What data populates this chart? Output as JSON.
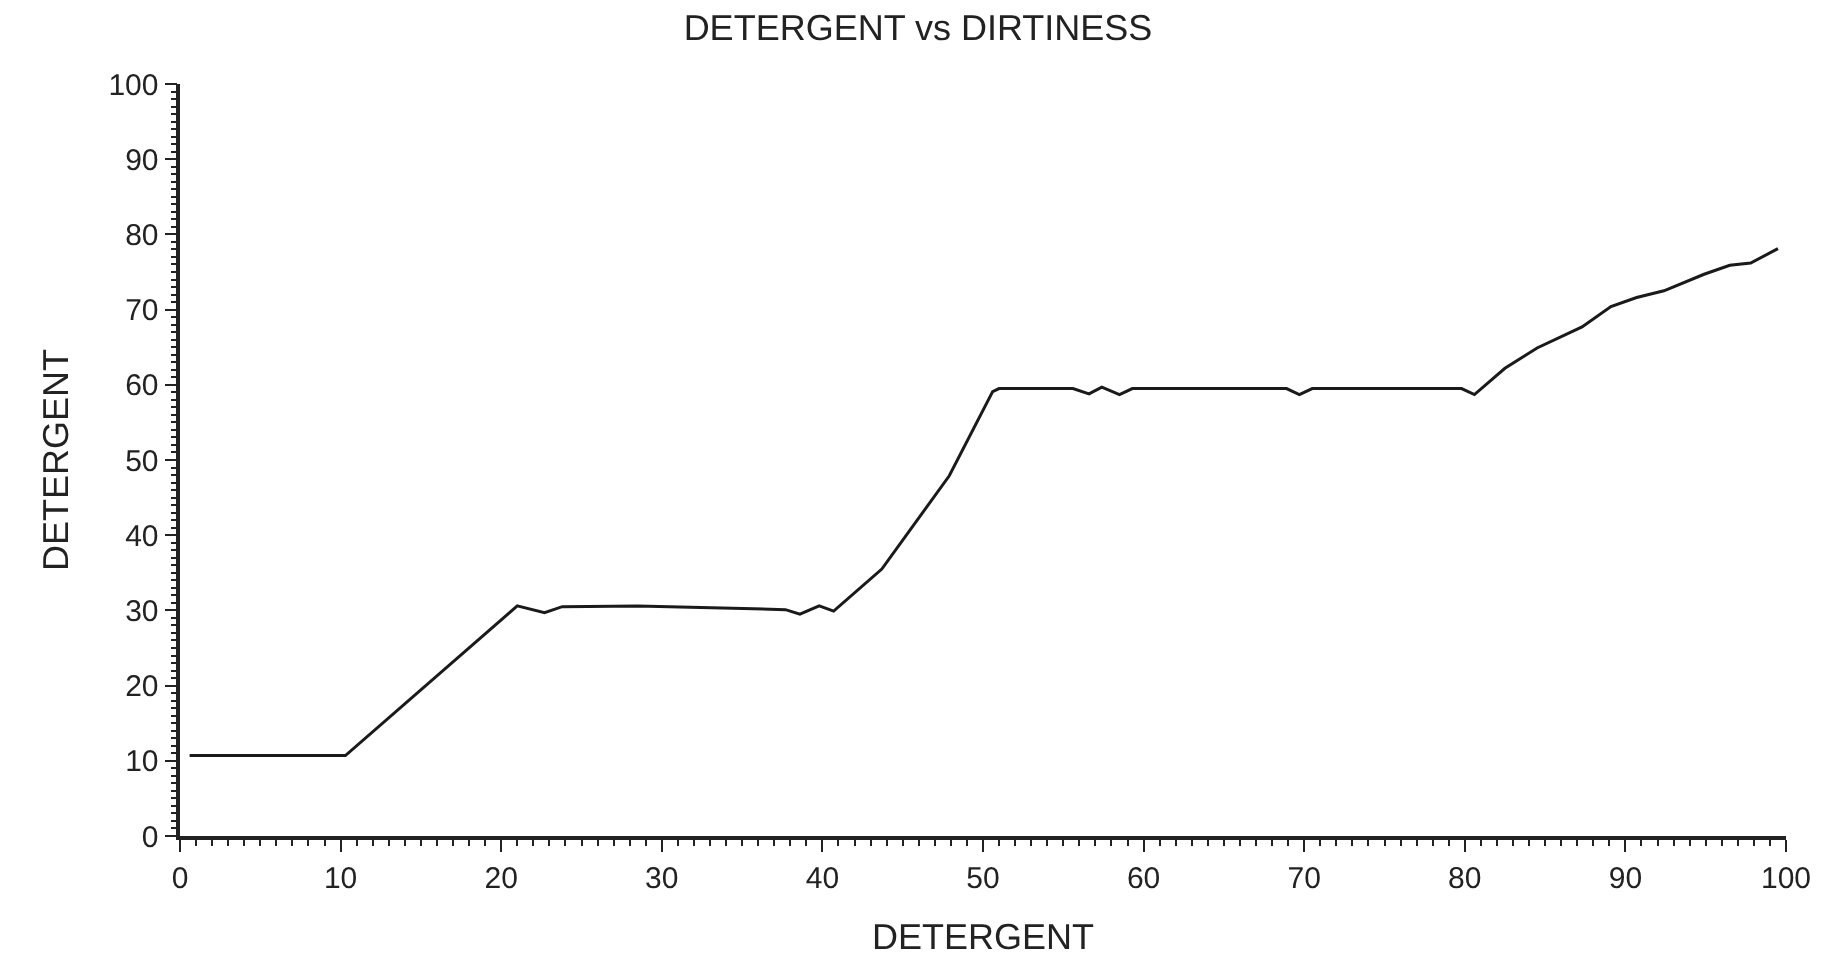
{
  "chart_data": {
    "type": "line",
    "title": "DETERGENT vs DIRTINESS",
    "xlabel": "DETERGENT",
    "ylabel": "DETERGENT",
    "xlim": [
      0,
      100
    ],
    "xticks": [
      0,
      10,
      20,
      30,
      40,
      50,
      60,
      70,
      80,
      90,
      100
    ],
    "ylim": [
      0,
      100
    ],
    "yticks": [
      0,
      10,
      20,
      30,
      40,
      50,
      60,
      70,
      80,
      90,
      100
    ],
    "marker": "none",
    "line_style": "solid",
    "series": [
      {
        "color": "#1a1a1a",
        "x": [
          0.6,
          10.3,
          21.0,
          22.7,
          23.8,
          28.5,
          37.7,
          38.6,
          39.8,
          40.7,
          43.7,
          47.9,
          50.6,
          51.0,
          55.6,
          56.6,
          57.4,
          58.5,
          59.3,
          68.9,
          69.7,
          70.5,
          79.8,
          80.6,
          82.5,
          84.5,
          87.3,
          89.1,
          90.7,
          92.4,
          94.9,
          96.5,
          97.8,
          99.5
        ],
        "values": [
          10.7,
          10.7,
          30.6,
          29.7,
          30.5,
          30.6,
          30.1,
          29.5,
          30.6,
          29.9,
          35.5,
          47.9,
          59.1,
          59.5,
          59.5,
          58.8,
          59.7,
          58.7,
          59.5,
          59.5,
          58.7,
          59.5,
          59.5,
          58.7,
          62.2,
          64.9,
          67.7,
          70.4,
          71.6,
          72.5,
          74.7,
          75.9,
          76.2,
          78.1
        ]
      }
    ]
  }
}
